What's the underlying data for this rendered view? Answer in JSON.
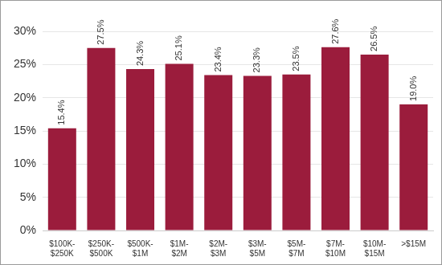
{
  "chart_data": {
    "type": "bar",
    "categories": [
      "$100K-$250K",
      "$250K-$500K",
      "$500K-$1M",
      "$1M-$2M",
      "$2M-$3M",
      "$3M-$5M",
      "$5M-$7M",
      "$7M-$10M",
      "$10M-$15M",
      ">$15M"
    ],
    "values": [
      15.4,
      27.5,
      24.3,
      25.1,
      23.4,
      23.3,
      23.5,
      27.6,
      26.5,
      19.0
    ],
    "value_labels": [
      "15.4%",
      "27.5%",
      "24.3%",
      "25.1%",
      "23.4%",
      "23.3%",
      "23.5%",
      "27.6%",
      "26.5%",
      "19.0%"
    ],
    "color": "#9b1c3c",
    "ylim": [
      0,
      30
    ],
    "yticks": [
      {
        "value": 0,
        "label": "0%"
      },
      {
        "value": 5,
        "label": "5%"
      },
      {
        "value": 10,
        "label": "10%"
      },
      {
        "value": 15,
        "label": "15%"
      },
      {
        "value": 20,
        "label": "20%"
      },
      {
        "value": 25,
        "label": "25%"
      },
      {
        "value": 30,
        "label": "30%"
      }
    ],
    "grid": true,
    "data_labels": true
  }
}
